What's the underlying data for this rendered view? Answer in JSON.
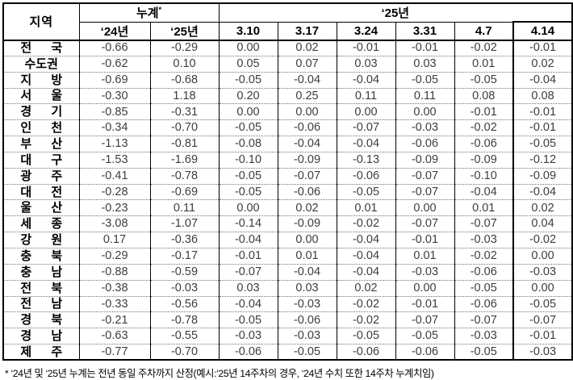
{
  "table": {
    "region_header": "지역",
    "cumulative_header": "누계",
    "cumulative_mark": "*",
    "year_header": "‘25년",
    "sub_headers": [
      "‘24년",
      "‘25년",
      "3.10",
      "3.17",
      "3.24",
      "3.31",
      "4.7",
      "4.14"
    ],
    "rows": [
      {
        "region": "전 국",
        "values": [
          "-0.66",
          "-0.29",
          "0.00",
          "0.02",
          "-0.01",
          "-0.01",
          "-0.02",
          "-0.01"
        ]
      },
      {
        "region": "수도권",
        "values": [
          "-0.62",
          "0.10",
          "0.05",
          "0.07",
          "0.03",
          "0.03",
          "0.01",
          "0.02"
        ]
      },
      {
        "region": "지 방",
        "values": [
          "-0.69",
          "-0.68",
          "-0.05",
          "-0.04",
          "-0.04",
          "-0.05",
          "-0.05",
          "-0.04"
        ]
      },
      {
        "region": "서 울",
        "values": [
          "-0.30",
          "1.18",
          "0.20",
          "0.25",
          "0.11",
          "0.11",
          "0.08",
          "0.08"
        ]
      },
      {
        "region": "경 기",
        "values": [
          "-0.85",
          "-0.31",
          "0.00",
          "0.00",
          "0.00",
          "0.00",
          "-0.01",
          "-0.01"
        ]
      },
      {
        "region": "인 천",
        "values": [
          "-0.34",
          "-0.70",
          "-0.05",
          "-0.06",
          "-0.07",
          "-0.03",
          "-0.02",
          "-0.01"
        ]
      },
      {
        "region": "부 산",
        "values": [
          "-1.13",
          "-0.81",
          "-0.08",
          "-0.04",
          "-0.04",
          "-0.06",
          "-0.06",
          "-0.05"
        ]
      },
      {
        "region": "대 구",
        "values": [
          "-1.53",
          "-1.69",
          "-0.10",
          "-0.09",
          "-0.13",
          "-0.09",
          "-0.09",
          "-0.12"
        ]
      },
      {
        "region": "광 주",
        "values": [
          "-0.41",
          "-0.78",
          "-0.05",
          "-0.07",
          "-0.06",
          "-0.07",
          "-0.10",
          "-0.09"
        ]
      },
      {
        "region": "대 전",
        "values": [
          "-0.28",
          "-0.69",
          "-0.05",
          "-0.06",
          "-0.05",
          "-0.07",
          "-0.04",
          "-0.04"
        ]
      },
      {
        "region": "울 산",
        "values": [
          "-0.23",
          "0.11",
          "0.00",
          "0.02",
          "0.01",
          "0.00",
          "0.01",
          "0.02"
        ]
      },
      {
        "region": "세 종",
        "values": [
          "-3.08",
          "-1.07",
          "-0.14",
          "-0.09",
          "-0.02",
          "-0.07",
          "-0.07",
          "0.04"
        ]
      },
      {
        "region": "강 원",
        "values": [
          "0.17",
          "-0.36",
          "-0.04",
          "0.00",
          "-0.04",
          "-0.01",
          "-0.03",
          "-0.02"
        ]
      },
      {
        "region": "충 북",
        "values": [
          "-0.29",
          "-0.17",
          "-0.01",
          "0.01",
          "-0.04",
          "0.01",
          "-0.02",
          "0.00"
        ]
      },
      {
        "region": "충 남",
        "values": [
          "-0.88",
          "-0.59",
          "-0.07",
          "-0.04",
          "-0.04",
          "-0.03",
          "-0.06",
          "-0.03"
        ]
      },
      {
        "region": "전 북",
        "values": [
          "-0.38",
          "-0.03",
          "0.03",
          "0.03",
          "0.02",
          "0.00",
          "-0.05",
          "0.00"
        ]
      },
      {
        "region": "전 남",
        "values": [
          "-0.33",
          "-0.56",
          "-0.04",
          "-0.03",
          "-0.02",
          "-0.01",
          "-0.06",
          "-0.05"
        ]
      },
      {
        "region": "경 북",
        "values": [
          "-0.21",
          "-0.78",
          "-0.05",
          "-0.06",
          "-0.02",
          "-0.07",
          "-0.07",
          "-0.07"
        ]
      },
      {
        "region": "경 남",
        "values": [
          "-0.63",
          "-0.55",
          "-0.03",
          "-0.03",
          "-0.05",
          "-0.05",
          "-0.03",
          "-0.01"
        ]
      },
      {
        "region": "제 주",
        "values": [
          "-0.77",
          "-0.70",
          "-0.06",
          "-0.05",
          "-0.06",
          "-0.06",
          "-0.05",
          "-0.03"
        ]
      }
    ]
  },
  "footnote": "* ‘24년 및 ‘25년 누계는 전년 동일 주차까지 산정(예시:‘25년 14주차의 경우, ‘24년 수치 또한 14주차 누계치임)",
  "colors": {
    "border": "#000000",
    "value_text": "#3d3d3d",
    "row_divider": "#737373",
    "background": "#ffffff"
  }
}
